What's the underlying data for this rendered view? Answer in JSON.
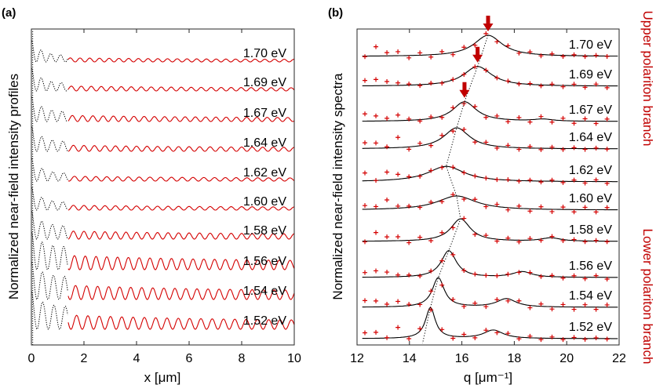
{
  "colors": {
    "data_red": "#d40000",
    "fit_black": "#000000",
    "annot_red": "#c00000"
  },
  "chart_data": [
    {
      "panel_label": "(a)",
      "type": "line",
      "xlabel": "x [μm]",
      "ylabel": "Normalized near-field intensity profiles",
      "xlim": [
        0,
        10
      ],
      "x_ticks": [
        0,
        2,
        4,
        6,
        8,
        10
      ],
      "x_tick_labels": [
        "0",
        "2",
        "4",
        "6",
        "8",
        "10"
      ],
      "series": [
        {
          "name": "1.70 eV",
          "energy": 1.7,
          "spatial_period_um": 0.37,
          "amplitude": 0.1
        },
        {
          "name": "1.69 eV",
          "energy": 1.69,
          "spatial_period_um": 0.38,
          "amplitude": 0.12
        },
        {
          "name": "1.67 eV",
          "energy": 1.67,
          "spatial_period_um": 0.39,
          "amplitude": 0.15
        },
        {
          "name": "1.64 eV",
          "energy": 1.64,
          "spatial_period_um": 0.4,
          "amplitude": 0.15
        },
        {
          "name": "1.62 eV",
          "energy": 1.62,
          "spatial_period_um": 0.41,
          "amplitude": 0.12
        },
        {
          "name": "1.60 eV",
          "energy": 1.6,
          "spatial_period_um": 0.4,
          "amplitude": 0.12
        },
        {
          "name": "1.58 eV",
          "energy": 1.58,
          "spatial_period_um": 0.4,
          "amplitude": 0.2
        },
        {
          "name": "1.56 eV",
          "energy": 1.56,
          "spatial_period_um": 0.41,
          "amplitude": 0.35
        },
        {
          "name": "1.54 eV",
          "energy": 1.54,
          "spatial_period_um": 0.42,
          "amplitude": 0.35
        },
        {
          "name": "1.52 eV",
          "energy": 1.52,
          "spatial_period_um": 0.43,
          "amplitude": 0.35
        }
      ],
      "segments": {
        "black_dotted_x_range": [
          0,
          1.4
        ],
        "red_x_range": [
          1.4,
          10
        ]
      }
    },
    {
      "panel_label": "(b)",
      "type": "line",
      "xlabel": "q [μm⁻¹]",
      "ylabel": "Normalized near-field intensity spectra",
      "xlim": [
        12,
        22
      ],
      "x_ticks": [
        12,
        14,
        16,
        18,
        20,
        22
      ],
      "x_tick_labels": [
        "12",
        "14",
        "16",
        "18",
        "20",
        "22"
      ],
      "series": [
        {
          "name": "1.70 eV",
          "energy": 1.7,
          "peak_q": 17.0,
          "peak_height": 0.75,
          "peak_width": 1.3,
          "side_peak_q": null,
          "side_peak_height": 0
        },
        {
          "name": "1.69 eV",
          "energy": 1.69,
          "peak_q": 16.6,
          "peak_height": 0.7,
          "peak_width": 1.3,
          "side_peak_q": null,
          "side_peak_height": 0
        },
        {
          "name": "1.67 eV",
          "energy": 1.67,
          "peak_q": 16.1,
          "peak_height": 0.7,
          "peak_width": 1.1,
          "side_peak_q": 19.1,
          "side_peak_height": 0.07
        },
        {
          "name": "1.64 eV",
          "energy": 1.64,
          "peak_q": 15.8,
          "peak_height": 0.75,
          "peak_width": 1.2,
          "side_peak_q": null,
          "side_peak_height": 0
        },
        {
          "name": "1.62 eV",
          "energy": 1.62,
          "peak_q": 15.4,
          "peak_height": 0.55,
          "peak_width": 1.7,
          "side_peak_q": null,
          "side_peak_height": 0
        },
        {
          "name": "1.60 eV",
          "energy": 1.6,
          "peak_q": 15.8,
          "peak_height": 0.5,
          "peak_width": 1.8,
          "side_peak_q": null,
          "side_peak_height": 0
        },
        {
          "name": "1.58 eV",
          "energy": 1.58,
          "peak_q": 15.95,
          "peak_height": 0.8,
          "peak_width": 0.9,
          "side_peak_q": 19.4,
          "side_peak_height": 0.12
        },
        {
          "name": "1.56 eV",
          "energy": 1.56,
          "peak_q": 15.5,
          "peak_height": 0.95,
          "peak_width": 0.7,
          "side_peak_q": 18.3,
          "side_peak_height": 0.2
        },
        {
          "name": "1.54 eV",
          "energy": 1.54,
          "peak_q": 15.1,
          "peak_height": 1.05,
          "peak_width": 0.55,
          "side_peak_q": 17.7,
          "side_peak_height": 0.3
        },
        {
          "name": "1.52 eV",
          "energy": 1.52,
          "peak_q": 14.8,
          "peak_height": 1.1,
          "peak_width": 0.45,
          "side_peak_q": 17.2,
          "side_peak_height": 0.3
        }
      ],
      "arrow_q": [
        17.0,
        16.6,
        16.1
      ],
      "branch_labels": {
        "upper": "Upper polariton branch",
        "lower": "Lower polariton branch"
      }
    }
  ]
}
